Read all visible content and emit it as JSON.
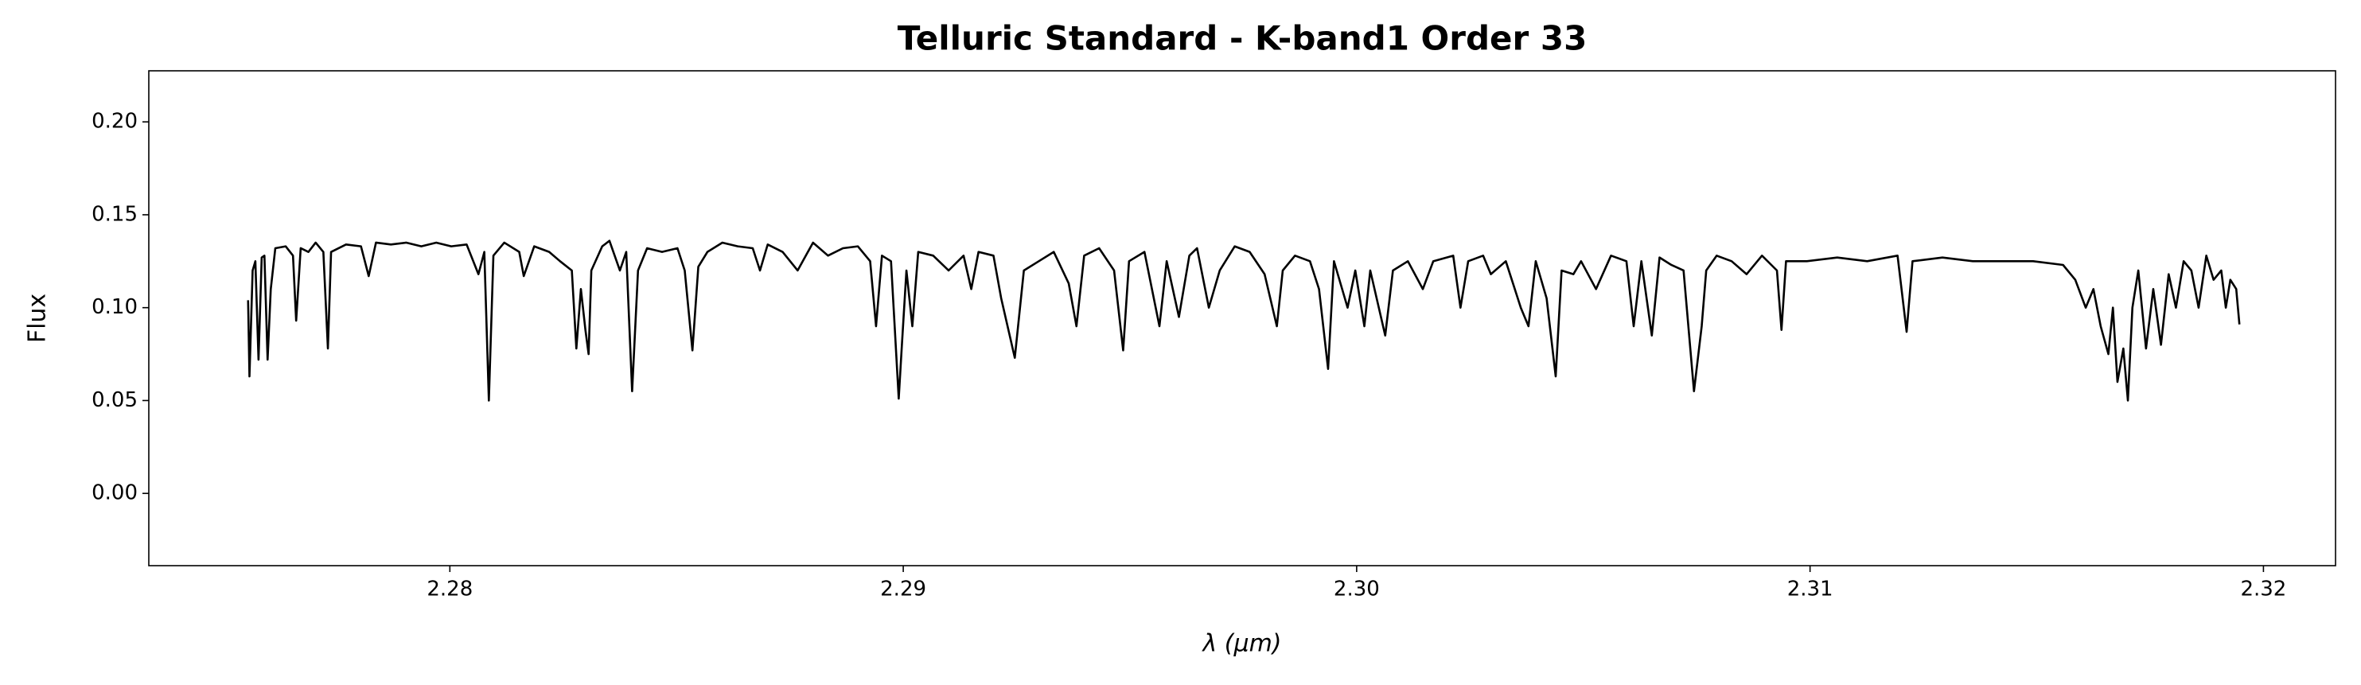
{
  "chart_data": {
    "type": "line",
    "title": "Telluric Standard - K-band1 Order 33",
    "xlabel": "λ (μm)",
    "ylabel": "Flux",
    "xlim": [
      2.27336,
      2.32159
    ],
    "ylim": [
      -0.0389,
      0.2275
    ],
    "xticks": [
      2.28,
      2.29,
      {
        "value": 2.3,
        "label": "2.30"
      },
      2.31,
      2.32
    ],
    "yticks": [
      {
        "value": 0,
        "label": "0.00"
      },
      {
        "value": 0.05,
        "label": "0.05"
      },
      {
        "value": 0.1,
        "label": "0.10"
      },
      {
        "value": 0.15,
        "label": "0.15"
      },
      {
        "value": 0.2,
        "label": "0.20"
      }
    ],
    "grid": false,
    "series": [
      {
        "color": "#000000",
        "x": [
          2.27555,
          2.27558,
          2.27565,
          2.27571,
          2.27578,
          2.27585,
          2.27591,
          2.27598,
          2.27605,
          2.27615,
          2.27638,
          2.27654,
          2.27661,
          2.27671,
          2.27688,
          2.27704,
          2.27721,
          2.27731,
          2.27738,
          2.27771,
          2.27804,
          2.27821,
          2.27837,
          2.2787,
          2.27904,
          2.27937,
          2.2797,
          2.28003,
          2.28037,
          2.28063,
          2.28076,
          2.28086,
          2.28096,
          2.2812,
          2.28153,
          2.28163,
          2.28186,
          2.28219,
          2.28243,
          2.28269,
          2.28279,
          2.28289,
          2.28299,
          2.28306,
          2.28312,
          2.28336,
          2.28352,
          2.28375,
          2.28389,
          2.28402,
          2.28415,
          2.28435,
          2.28468,
          2.28502,
          2.28518,
          2.28535,
          2.28548,
          2.28568,
          2.28601,
          2.28635,
          2.28668,
          2.28684,
          2.28701,
          2.28734,
          2.28767,
          2.28801,
          2.28834,
          2.28867,
          2.289,
          2.28927,
          2.2894,
          2.28953,
          2.28973,
          2.2899,
          2.28997,
          2.29007,
          2.2902,
          2.29033,
          2.29066,
          2.291,
          2.29133,
          2.2915,
          2.29166,
          2.29199,
          2.29216,
          2.29246,
          2.29266,
          2.29299,
          2.29332,
          2.29365,
          2.29382,
          2.29399,
          2.29432,
          2.29465,
          2.29485,
          2.29498,
          2.29532,
          2.29565,
          2.29581,
          2.29608,
          2.29631,
          2.29648,
          2.29674,
          2.29698,
          2.29731,
          2.29764,
          2.29797,
          2.29824,
          2.29837,
          2.29864,
          2.29897,
          2.29917,
          2.29937,
          2.2995,
          2.2998,
          2.29997,
          2.30017,
          2.3003,
          2.30063,
          2.3008,
          2.30113,
          2.30146,
          2.30169,
          2.30213,
          2.30229,
          2.30246,
          2.30279,
          2.30296,
          2.30329,
          2.30362,
          2.30379,
          2.30395,
          2.30419,
          2.30439,
          2.30452,
          2.30478,
          2.30495,
          2.30528,
          2.30561,
          2.30595,
          2.30611,
          2.30628,
          2.30651,
          2.30668,
          2.30694,
          2.30721,
          2.30744,
          2.30761,
          2.30771,
          2.30794,
          2.30827,
          2.3086,
          2.30894,
          2.30927,
          2.30937,
          2.30947,
          2.30993,
          2.3106,
          2.31126,
          2.31193,
          2.31213,
          2.31226,
          2.31292,
          2.31359,
          2.31425,
          2.31492,
          2.31558,
          2.31585,
          2.31608,
          2.31625,
          2.31641,
          2.31658,
          2.31668,
          2.31678,
          2.31691,
          2.31701,
          2.31711,
          2.31724,
          2.31741,
          2.31757,
          2.31774,
          2.31791,
          2.31807,
          2.31824,
          2.31841,
          2.31857,
          2.31874,
          2.3189,
          2.31907,
          2.31917,
          2.31927,
          2.3194,
          2.31947
        ],
        "values": [
          0.104,
          0.063,
          0.12,
          0.125,
          0.072,
          0.127,
          0.128,
          0.072,
          0.11,
          0.132,
          0.133,
          0.128,
          0.093,
          0.132,
          0.13,
          0.135,
          0.13,
          0.078,
          0.13,
          0.134,
          0.133,
          0.117,
          0.135,
          0.134,
          0.135,
          0.133,
          0.135,
          0.133,
          0.134,
          0.118,
          0.13,
          0.05,
          0.128,
          0.135,
          0.13,
          0.117,
          0.133,
          0.13,
          0.125,
          0.12,
          0.078,
          0.11,
          0.088,
          0.075,
          0.12,
          0.133,
          0.136,
          0.12,
          0.13,
          0.055,
          0.12,
          0.132,
          0.13,
          0.132,
          0.12,
          0.077,
          0.122,
          0.13,
          0.135,
          0.133,
          0.132,
          0.12,
          0.134,
          0.13,
          0.12,
          0.135,
          0.128,
          0.132,
          0.133,
          0.125,
          0.09,
          0.128,
          0.125,
          0.051,
          0.08,
          0.12,
          0.09,
          0.13,
          0.128,
          0.12,
          0.128,
          0.11,
          0.13,
          0.128,
          0.105,
          0.073,
          0.12,
          0.125,
          0.13,
          0.113,
          0.09,
          0.128,
          0.132,
          0.12,
          0.077,
          0.125,
          0.13,
          0.09,
          0.125,
          0.095,
          0.128,
          0.132,
          0.1,
          0.12,
          0.133,
          0.13,
          0.118,
          0.09,
          0.12,
          0.128,
          0.125,
          0.11,
          0.067,
          0.125,
          0.1,
          0.12,
          0.09,
          0.12,
          0.085,
          0.12,
          0.125,
          0.11,
          0.125,
          0.128,
          0.1,
          0.125,
          0.128,
          0.118,
          0.125,
          0.1,
          0.09,
          0.125,
          0.105,
          0.063,
          0.12,
          0.118,
          0.125,
          0.11,
          0.128,
          0.125,
          0.09,
          0.125,
          0.085,
          0.127,
          0.123,
          0.12,
          0.055,
          0.09,
          0.12,
          0.128,
          0.125,
          0.118,
          0.128,
          0.12,
          0.088,
          0.125,
          0.125,
          0.127,
          0.125,
          0.128,
          0.087,
          0.125,
          0.127,
          0.125,
          0.125,
          0.125,
          0.123,
          0.115,
          0.1,
          0.11,
          0.09,
          0.075,
          0.1,
          0.06,
          0.078,
          0.05,
          0.1,
          0.12,
          0.078,
          0.11,
          0.08,
          0.118,
          0.1,
          0.125,
          0.12,
          0.1,
          0.128,
          0.115,
          0.12,
          0.1,
          0.115,
          0.11,
          0.091
        ]
      }
    ]
  }
}
